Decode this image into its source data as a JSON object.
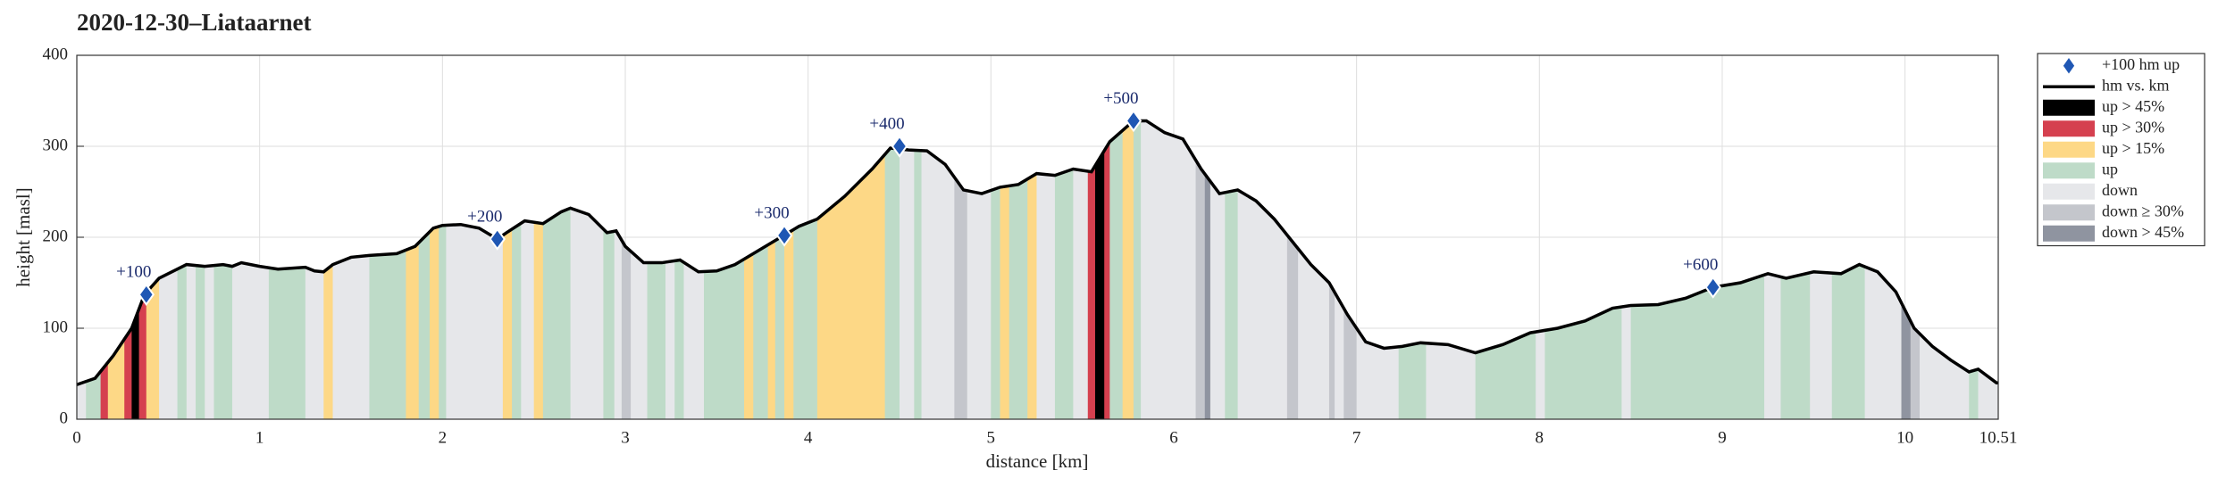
{
  "chart_data": {
    "type": "line",
    "title": "2020-12-30–Liataarnet",
    "xlabel": "distance [km]",
    "ylabel": "height [masl]",
    "xlim": [
      0,
      10.51
    ],
    "ylim": [
      0,
      400
    ],
    "xticks": [
      0,
      1,
      2,
      3,
      4,
      5,
      6,
      7,
      8,
      9,
      10,
      10.51
    ],
    "yticks": [
      0,
      100,
      200,
      300,
      400
    ],
    "grid": true,
    "legend_position": "outside upper right",
    "markers": {
      "name": "+100 hm up",
      "color": "#1f57b4",
      "x": [
        0.38,
        2.3,
        3.87,
        4.5,
        5.78,
        8.95
      ],
      "values": [
        137,
        198,
        202,
        300,
        328,
        145
      ],
      "labels": [
        "+100",
        "+200",
        "+300",
        "+400",
        "+500",
        "+600"
      ]
    },
    "series": [
      {
        "name": "hm vs. km",
        "color": "#000000",
        "x": [
          0,
          0.1,
          0.2,
          0.3,
          0.37,
          0.45,
          0.55,
          0.6,
          0.7,
          0.8,
          0.85,
          0.9,
          1.0,
          1.1,
          1.25,
          1.3,
          1.35,
          1.4,
          1.5,
          1.6,
          1.75,
          1.85,
          1.95,
          2.0,
          2.1,
          2.2,
          2.3,
          2.35,
          2.45,
          2.55,
          2.65,
          2.7,
          2.8,
          2.9,
          2.95,
          3.0,
          3.1,
          3.2,
          3.3,
          3.4,
          3.5,
          3.6,
          3.7,
          3.85,
          3.95,
          4.05,
          4.2,
          4.35,
          4.45,
          4.55,
          4.65,
          4.75,
          4.85,
          4.95,
          5.05,
          5.15,
          5.25,
          5.35,
          5.45,
          5.55,
          5.65,
          5.78,
          5.85,
          5.95,
          6.05,
          6.15,
          6.25,
          6.35,
          6.45,
          6.55,
          6.65,
          6.75,
          6.85,
          6.95,
          7.05,
          7.15,
          7.25,
          7.35,
          7.5,
          7.65,
          7.8,
          7.95,
          8.1,
          8.25,
          8.4,
          8.5,
          8.65,
          8.8,
          8.95,
          9.1,
          9.25,
          9.35,
          9.5,
          9.65,
          9.75,
          9.85,
          9.95,
          10.05,
          10.15,
          10.25,
          10.35,
          10.4,
          10.5,
          10.51
        ],
        "values": [
          38,
          45,
          70,
          100,
          137,
          155,
          165,
          170,
          168,
          170,
          168,
          172,
          168,
          165,
          167,
          163,
          162,
          170,
          178,
          180,
          182,
          190,
          210,
          213,
          214,
          210,
          198,
          205,
          218,
          215,
          228,
          232,
          225,
          205,
          207,
          190,
          172,
          172,
          175,
          162,
          163,
          170,
          182,
          200,
          212,
          220,
          245,
          275,
          298,
          296,
          295,
          280,
          252,
          248,
          255,
          258,
          270,
          268,
          275,
          272,
          305,
          328,
          328,
          315,
          308,
          275,
          248,
          252,
          240,
          220,
          195,
          170,
          150,
          115,
          85,
          78,
          80,
          84,
          82,
          73,
          82,
          95,
          100,
          108,
          122,
          125,
          126,
          133,
          145,
          150,
          160,
          155,
          162,
          160,
          170,
          162,
          140,
          100,
          80,
          65,
          52,
          55,
          40,
          40
        ]
      }
    ],
    "band_classes": [
      {
        "name": "up > 45%",
        "color": "#000000"
      },
      {
        "name": "up > 30%",
        "color": "#d5404f"
      },
      {
        "name": "up > 15%",
        "color": "#fdd886"
      },
      {
        "name": "up",
        "color": "#bedbc8"
      },
      {
        "name": "down",
        "color": "#e6e7ea"
      },
      {
        "name": "down ≥ 30%",
        "color": "#c4c6cc"
      },
      {
        "name": "down > 45%",
        "color": "#8f94a0"
      }
    ],
    "bands": [
      [
        0,
        0.05,
        4
      ],
      [
        0.05,
        0.13,
        3
      ],
      [
        0.13,
        0.17,
        1
      ],
      [
        0.17,
        0.26,
        2
      ],
      [
        0.26,
        0.3,
        1
      ],
      [
        0.3,
        0.34,
        0
      ],
      [
        0.34,
        0.38,
        1
      ],
      [
        0.38,
        0.45,
        2
      ],
      [
        0.45,
        0.55,
        4
      ],
      [
        0.55,
        0.6,
        3
      ],
      [
        0.6,
        0.65,
        4
      ],
      [
        0.65,
        0.7,
        3
      ],
      [
        0.7,
        0.75,
        4
      ],
      [
        0.75,
        0.85,
        3
      ],
      [
        0.85,
        1.05,
        4
      ],
      [
        1.05,
        1.25,
        3
      ],
      [
        1.25,
        1.35,
        4
      ],
      [
        1.35,
        1.4,
        2
      ],
      [
        1.4,
        1.6,
        4
      ],
      [
        1.6,
        1.8,
        3
      ],
      [
        1.8,
        1.87,
        2
      ],
      [
        1.87,
        1.93,
        3
      ],
      [
        1.93,
        1.98,
        2
      ],
      [
        1.98,
        2.02,
        3
      ],
      [
        2.02,
        2.33,
        4
      ],
      [
        2.33,
        2.38,
        2
      ],
      [
        2.38,
        2.43,
        3
      ],
      [
        2.43,
        2.5,
        4
      ],
      [
        2.5,
        2.55,
        2
      ],
      [
        2.55,
        2.7,
        3
      ],
      [
        2.7,
        2.88,
        4
      ],
      [
        2.88,
        2.94,
        3
      ],
      [
        2.94,
        2.98,
        4
      ],
      [
        2.98,
        3.03,
        5
      ],
      [
        3.03,
        3.12,
        4
      ],
      [
        3.12,
        3.22,
        3
      ],
      [
        3.22,
        3.27,
        4
      ],
      [
        3.27,
        3.32,
        3
      ],
      [
        3.32,
        3.43,
        4
      ],
      [
        3.43,
        3.65,
        3
      ],
      [
        3.65,
        3.7,
        2
      ],
      [
        3.7,
        3.78,
        3
      ],
      [
        3.78,
        3.82,
        2
      ],
      [
        3.82,
        3.87,
        3
      ],
      [
        3.87,
        3.92,
        2
      ],
      [
        3.92,
        4.05,
        3
      ],
      [
        4.05,
        4.42,
        2
      ],
      [
        4.42,
        4.5,
        3
      ],
      [
        4.5,
        4.58,
        4
      ],
      [
        4.58,
        4.62,
        3
      ],
      [
        4.62,
        4.8,
        4
      ],
      [
        4.8,
        4.87,
        5
      ],
      [
        4.87,
        5.0,
        4
      ],
      [
        5.0,
        5.05,
        3
      ],
      [
        5.05,
        5.1,
        2
      ],
      [
        5.1,
        5.2,
        3
      ],
      [
        5.2,
        5.25,
        2
      ],
      [
        5.25,
        5.35,
        4
      ],
      [
        5.35,
        5.45,
        3
      ],
      [
        5.45,
        5.53,
        4
      ],
      [
        5.53,
        5.57,
        1
      ],
      [
        5.57,
        5.62,
        0
      ],
      [
        5.62,
        5.65,
        1
      ],
      [
        5.65,
        5.72,
        3
      ],
      [
        5.72,
        5.78,
        2
      ],
      [
        5.78,
        5.82,
        3
      ],
      [
        5.82,
        6.12,
        4
      ],
      [
        6.12,
        6.17,
        5
      ],
      [
        6.17,
        6.2,
        6
      ],
      [
        6.2,
        6.28,
        4
      ],
      [
        6.28,
        6.35,
        3
      ],
      [
        6.35,
        6.62,
        4
      ],
      [
        6.62,
        6.68,
        5
      ],
      [
        6.68,
        6.85,
        4
      ],
      [
        6.85,
        6.88,
        5
      ],
      [
        6.88,
        6.93,
        4
      ],
      [
        6.93,
        7.0,
        5
      ],
      [
        7.0,
        7.23,
        4
      ],
      [
        7.23,
        7.38,
        3
      ],
      [
        7.38,
        7.65,
        4
      ],
      [
        7.65,
        7.98,
        3
      ],
      [
        7.98,
        8.03,
        4
      ],
      [
        8.03,
        8.45,
        3
      ],
      [
        8.45,
        8.5,
        4
      ],
      [
        8.5,
        9.23,
        3
      ],
      [
        9.23,
        9.32,
        4
      ],
      [
        9.32,
        9.48,
        3
      ],
      [
        9.48,
        9.6,
        4
      ],
      [
        9.6,
        9.78,
        3
      ],
      [
        9.78,
        9.98,
        4
      ],
      [
        9.98,
        10.03,
        6
      ],
      [
        10.03,
        10.08,
        5
      ],
      [
        10.08,
        10.35,
        4
      ],
      [
        10.35,
        10.4,
        3
      ],
      [
        10.4,
        10.51,
        4
      ]
    ]
  }
}
